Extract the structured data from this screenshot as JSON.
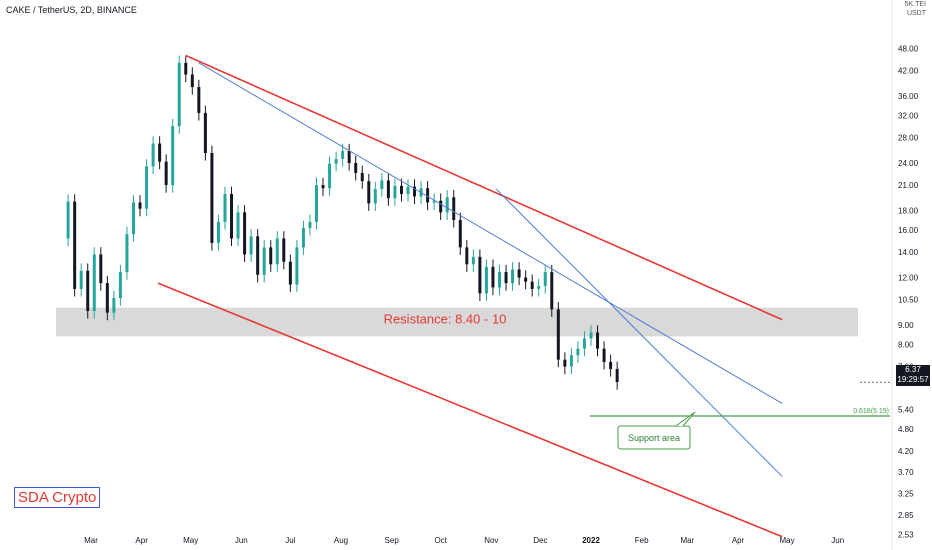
{
  "header": {
    "ticker": "CAKE / TetherUS, 2D, BINANCE",
    "currency_top": "5K.TEI",
    "currency": "USDT"
  },
  "brand": {
    "label": "SDA Crypto"
  },
  "price_tag": {
    "price": "6.37",
    "countdown": "19:29:57"
  },
  "annotations": {
    "resistance": "Resistance: 8.40 - 10",
    "fib": "0.618(5.19)",
    "support": "Support area"
  },
  "colors": {
    "up": "#26a69a",
    "down": "#131722",
    "channel_red": "#e53935",
    "channel_blue": "#4f7bd6",
    "fib_green": "#43a047",
    "zone": "#d9d9d9"
  },
  "chart_data": {
    "type": "candlestick",
    "y_scale": "log",
    "ylim": [
      2.45,
      55
    ],
    "y_ticks": [
      "48.00",
      "42.00",
      "36.00",
      "32.00",
      "28.00",
      "24.00",
      "21.00",
      "18.00",
      "16.00",
      "14.00",
      "12.00",
      "10.50",
      "9.00",
      "8.00",
      "7.00",
      "6.37",
      "5.40",
      "4.80",
      "4.20",
      "3.70",
      "3.25",
      "2.85",
      "2.53"
    ],
    "x_ticks": [
      "Mar",
      "Apr",
      "May",
      "Jun",
      "Jul",
      "Aug",
      "Sep",
      "Oct",
      "Nov",
      "Dec",
      "2022",
      "Feb",
      "Mar",
      "Apr",
      "May",
      "Jun"
    ],
    "grid": false,
    "resistance_zone": [
      8.4,
      10
    ],
    "fib_level": 5.19,
    "last_price": 6.37,
    "trendlines": [
      {
        "name": "upper-red",
        "from": [
          "2021-04-28",
          46
        ],
        "to": [
          "2022-04-28",
          9.3
        ]
      },
      {
        "name": "lower-red",
        "from": [
          "2021-04-11",
          11.6
        ],
        "to": [
          "2022-04-28",
          2.5
        ]
      },
      {
        "name": "upper-blue",
        "from": [
          "2021-05-06",
          44
        ],
        "to": [
          "2022-04-28",
          5.6
        ]
      },
      {
        "name": "lower-blue",
        "from": [
          "2021-11-04",
          20.5
        ],
        "to": [
          "2022-04-28",
          3.6
        ]
      }
    ],
    "closes": [
      19.0,
      11.2,
      12.5,
      9.8,
      13.8,
      11.6,
      9.7,
      10.6,
      12.4,
      15.6,
      18.9,
      18.2,
      23.5,
      27.0,
      24.2,
      21.0,
      30.0,
      44.0,
      41.0,
      38.0,
      32.5,
      25.5,
      14.8,
      16.8,
      19.9,
      15.2,
      17.8,
      13.8,
      15.4,
      12.2,
      14.4,
      13.0,
      15.2,
      13.2,
      11.5,
      14.4,
      16.2,
      16.8,
      21.0,
      20.6,
      23.9,
      24.6,
      25.8,
      24.0,
      22.6,
      21.5,
      18.8,
      20.5,
      21.6,
      19.4,
      20.9,
      19.9,
      20.8,
      19.6,
      20.6,
      18.9,
      19.1,
      17.8,
      19.5,
      17.0,
      14.4,
      13.0,
      13.6,
      10.9,
      12.8,
      11.3,
      12.4,
      11.6,
      12.6,
      12.0,
      11.7,
      11.2,
      11.4,
      12.4,
      9.9,
      7.3,
      7.0,
      7.5,
      7.8,
      8.3,
      8.6,
      7.8,
      7.2,
      6.9,
      6.37
    ]
  }
}
